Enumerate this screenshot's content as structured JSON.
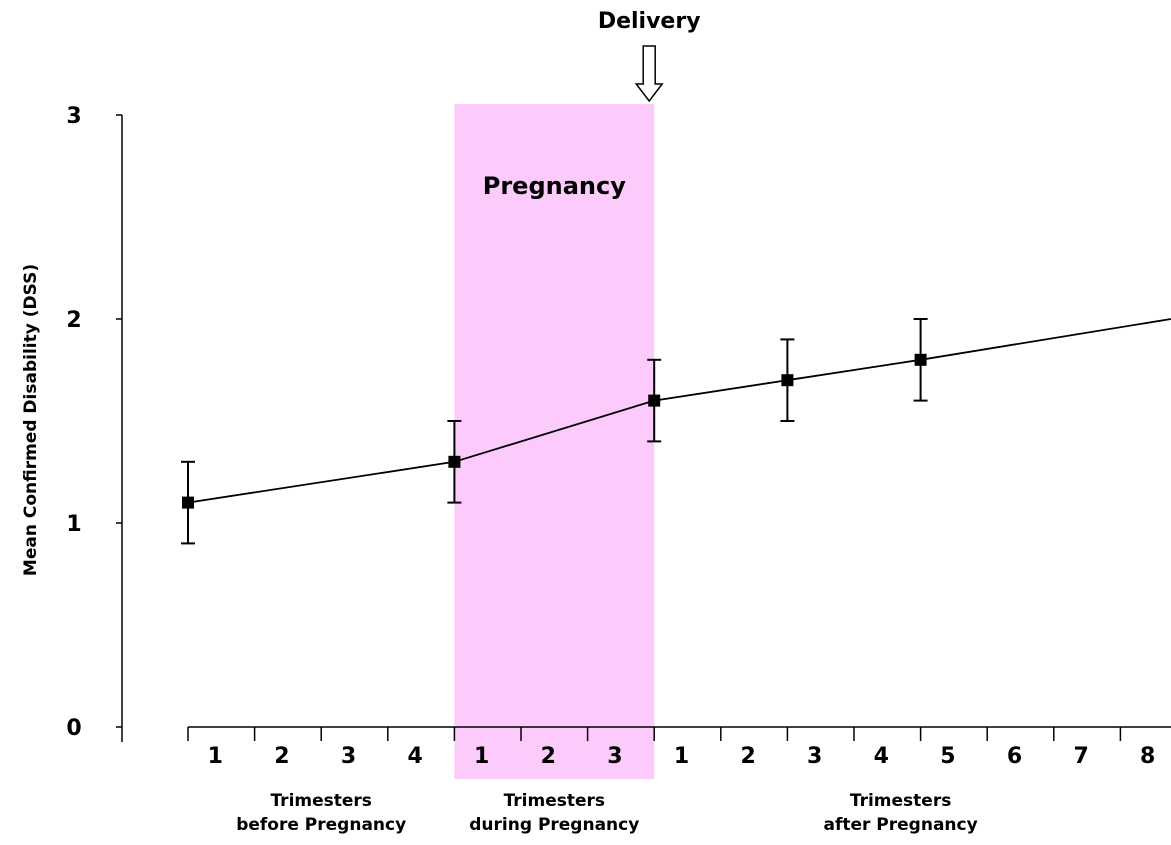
{
  "chart_data": {
    "type": "line",
    "ylabel": "Mean Confirmed Disability (DSS)",
    "ylim": [
      0,
      3
    ],
    "yticks": [
      "0",
      "1",
      "2",
      "3"
    ],
    "x_tick_labels": [
      "1",
      "2",
      "3",
      "4",
      "1",
      "2",
      "3",
      "1",
      "2",
      "3",
      "4",
      "5",
      "6",
      "7",
      "8"
    ],
    "group_labels": [
      {
        "line1": "Trimesters",
        "line2": "before Pregnancy"
      },
      {
        "line1": "Trimesters",
        "line2": "during Pregnancy"
      },
      {
        "line1": "Trimesters",
        "line2": "after Pregnancy"
      }
    ],
    "shaded_region": {
      "label": "Pregnancy",
      "from_trimester_index": 4,
      "to_trimester_index": 7,
      "color": "#fccbfc"
    },
    "annotation": {
      "label": "Delivery",
      "at_trimester_index": 7
    },
    "series": [
      {
        "points": [
          {
            "t": 0,
            "y": 1.1,
            "ylow": 0.9,
            "yhigh": 1.3
          },
          {
            "t": 4,
            "y": 1.3,
            "ylow": 1.1,
            "yhigh": 1.5
          },
          {
            "t": 7,
            "y": 1.6,
            "ylow": 1.4,
            "yhigh": 1.8
          },
          {
            "t": 9,
            "y": 1.7,
            "ylow": 1.5,
            "yhigh": 1.9
          },
          {
            "t": 11,
            "y": 1.8,
            "ylow": 1.6,
            "yhigh": 2.0
          }
        ],
        "line_end": {
          "t": 15,
          "y": 2.0
        }
      }
    ],
    "legend": "none",
    "grid": false
  }
}
